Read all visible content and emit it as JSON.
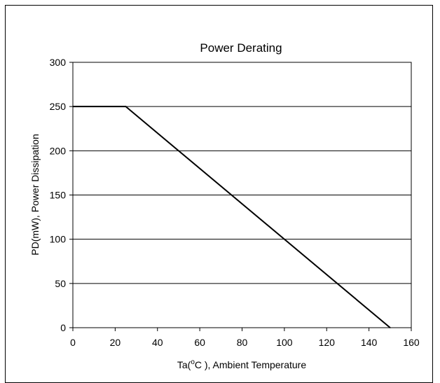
{
  "chart_data": {
    "type": "line",
    "title": "Power Derating",
    "xlabel": "Ta(°C ), Ambient Temperature",
    "xlabel_parts": {
      "pre": "Ta(",
      "sup": "o",
      "post": "C ), Ambient Temperature"
    },
    "ylabel": "PD(mW), Power Dissipation",
    "xlim": [
      0,
      160
    ],
    "ylim": [
      0,
      300
    ],
    "xticks": [
      0,
      20,
      40,
      60,
      80,
      100,
      120,
      140,
      160
    ],
    "yticks": [
      0,
      50,
      100,
      150,
      200,
      250,
      300
    ],
    "grid": "horizontal",
    "series": [
      {
        "x": [
          0,
          25,
          150
        ],
        "y": [
          250,
          250,
          0
        ]
      }
    ],
    "line_color": "#000000"
  }
}
